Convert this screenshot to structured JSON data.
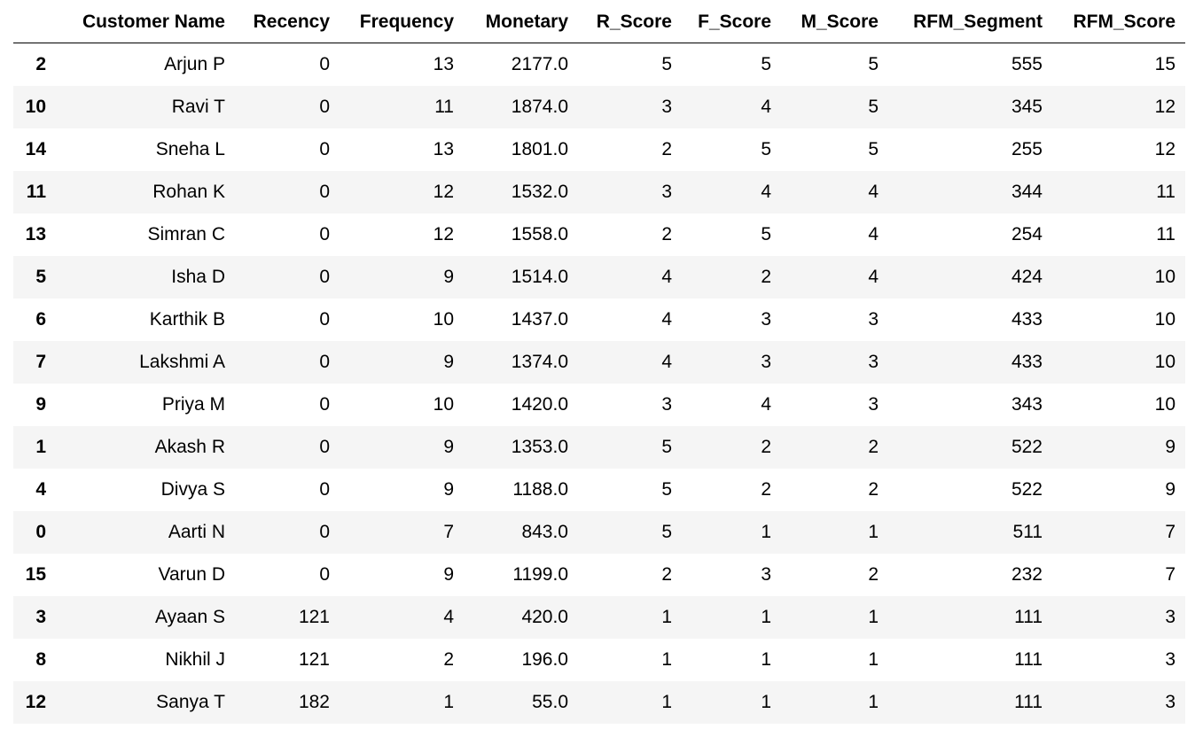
{
  "table": {
    "columns": [
      "",
      "Customer Name",
      "Recency",
      "Frequency",
      "Monetary",
      "R_Score",
      "F_Score",
      "M_Score",
      "RFM_Segment",
      "RFM_Score"
    ],
    "rows": [
      [
        "2",
        "Arjun P",
        "0",
        "13",
        "2177.0",
        "5",
        "5",
        "5",
        "555",
        "15"
      ],
      [
        "10",
        "Ravi T",
        "0",
        "11",
        "1874.0",
        "3",
        "4",
        "5",
        "345",
        "12"
      ],
      [
        "14",
        "Sneha L",
        "0",
        "13",
        "1801.0",
        "2",
        "5",
        "5",
        "255",
        "12"
      ],
      [
        "11",
        "Rohan K",
        "0",
        "12",
        "1532.0",
        "3",
        "4",
        "4",
        "344",
        "11"
      ],
      [
        "13",
        "Simran C",
        "0",
        "12",
        "1558.0",
        "2",
        "5",
        "4",
        "254",
        "11"
      ],
      [
        "5",
        "Isha D",
        "0",
        "9",
        "1514.0",
        "4",
        "2",
        "4",
        "424",
        "10"
      ],
      [
        "6",
        "Karthik B",
        "0",
        "10",
        "1437.0",
        "4",
        "3",
        "3",
        "433",
        "10"
      ],
      [
        "7",
        "Lakshmi A",
        "0",
        "9",
        "1374.0",
        "4",
        "3",
        "3",
        "433",
        "10"
      ],
      [
        "9",
        "Priya M",
        "0",
        "10",
        "1420.0",
        "3",
        "4",
        "3",
        "343",
        "10"
      ],
      [
        "1",
        "Akash R",
        "0",
        "9",
        "1353.0",
        "5",
        "2",
        "2",
        "522",
        "9"
      ],
      [
        "4",
        "Divya S",
        "0",
        "9",
        "1188.0",
        "5",
        "2",
        "2",
        "522",
        "9"
      ],
      [
        "0",
        "Aarti N",
        "0",
        "7",
        "843.0",
        "5",
        "1",
        "1",
        "511",
        "7"
      ],
      [
        "15",
        "Varun D",
        "0",
        "9",
        "1199.0",
        "2",
        "3",
        "2",
        "232",
        "7"
      ],
      [
        "3",
        "Ayaan S",
        "121",
        "4",
        "420.0",
        "1",
        "1",
        "1",
        "111",
        "3"
      ],
      [
        "8",
        "Nikhil J",
        "121",
        "2",
        "196.0",
        "1",
        "1",
        "1",
        "111",
        "3"
      ],
      [
        "12",
        "Sanya T",
        "182",
        "1",
        "55.0",
        "1",
        "1",
        "1",
        "111",
        "3"
      ]
    ]
  },
  "colors": {
    "stripe": "#f5f5f5",
    "header_rule": "#000000"
  }
}
